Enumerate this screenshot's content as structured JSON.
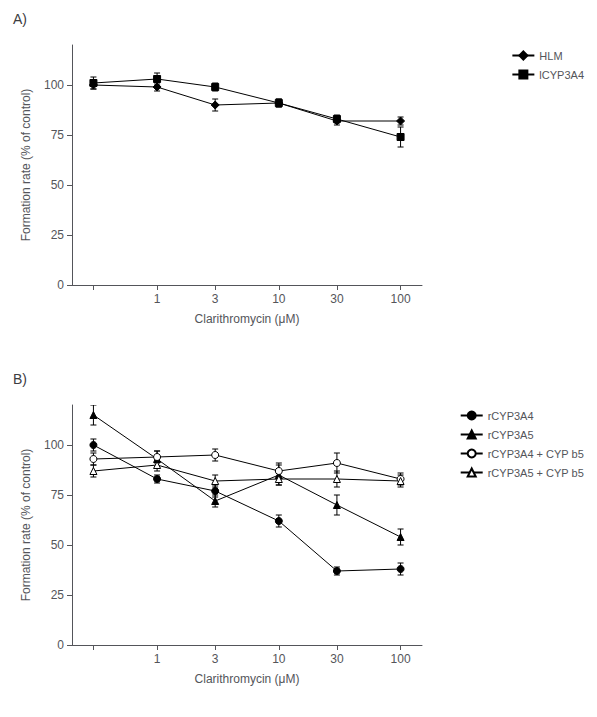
{
  "chart_data": [
    {
      "type": "line",
      "title": "A)",
      "xlabel": "Clarithromycin (μM)",
      "ylabel": "Formation rate (% of control)",
      "log": "x",
      "grid": false,
      "legend": "upper right",
      "line_style": "solid",
      "xlim": [
        0.2,
        150
      ],
      "xticks": [
        {
          "value": 0.3,
          "label": ""
        },
        1,
        3,
        10,
        30,
        100
      ],
      "ylim": [
        0,
        120
      ],
      "yticks": [
        0,
        25,
        50,
        75,
        100
      ],
      "x": [
        0.3,
        1,
        3,
        10,
        30,
        100
      ],
      "series": [
        {
          "name": "HLM",
          "color": "black",
          "marker": "diamond",
          "values": [
            100,
            99,
            90,
            91,
            82,
            82
          ],
          "yerr": [
            2,
            2,
            3,
            2,
            2,
            2
          ]
        },
        {
          "name": "lCYP3A4",
          "color": "black",
          "marker": "square",
          "values": [
            101,
            103,
            99,
            91,
            83,
            74
          ],
          "yerr": [
            3,
            3,
            2,
            2,
            2,
            5
          ]
        }
      ]
    },
    {
      "type": "line",
      "title": "B)",
      "xlabel": "Clarithromycin (μM)",
      "ylabel": "Formation rate (% of control)",
      "log": "x",
      "grid": false,
      "legend": "upper right",
      "line_style": "solid",
      "xlim": [
        0.2,
        150
      ],
      "xticks": [
        {
          "value": 0.3,
          "label": ""
        },
        1,
        3,
        10,
        30,
        100
      ],
      "ylim": [
        0,
        120
      ],
      "yticks": [
        0,
        25,
        50,
        75,
        100
      ],
      "x": [
        0.3,
        1,
        3,
        10,
        30,
        100
      ],
      "series": [
        {
          "name": "rCYP3A4",
          "color": "black",
          "marker": "circle",
          "values": [
            100,
            83,
            77,
            62,
            37,
            38
          ],
          "yerr": [
            3,
            2,
            3,
            3,
            2,
            3
          ]
        },
        {
          "name": "rCYP3A5",
          "color": "black",
          "marker": "triangle",
          "values": [
            115,
            93,
            72,
            85,
            70,
            54
          ],
          "yerr": [
            5,
            4,
            3,
            5,
            5,
            4
          ]
        },
        {
          "name": "rCYP3A4 + CYP b5",
          "color": "black",
          "marker": "open_circle",
          "values": [
            93,
            94,
            95,
            87,
            91,
            83
          ],
          "yerr": [
            3,
            3,
            3,
            4,
            5,
            3
          ]
        },
        {
          "name": "rCYP3A5 + CYP b5",
          "color": "black",
          "marker": "open_triangle",
          "values": [
            87,
            90,
            82,
            83,
            83,
            82
          ],
          "yerr": [
            3,
            3,
            3,
            3,
            4,
            3
          ]
        }
      ]
    }
  ]
}
